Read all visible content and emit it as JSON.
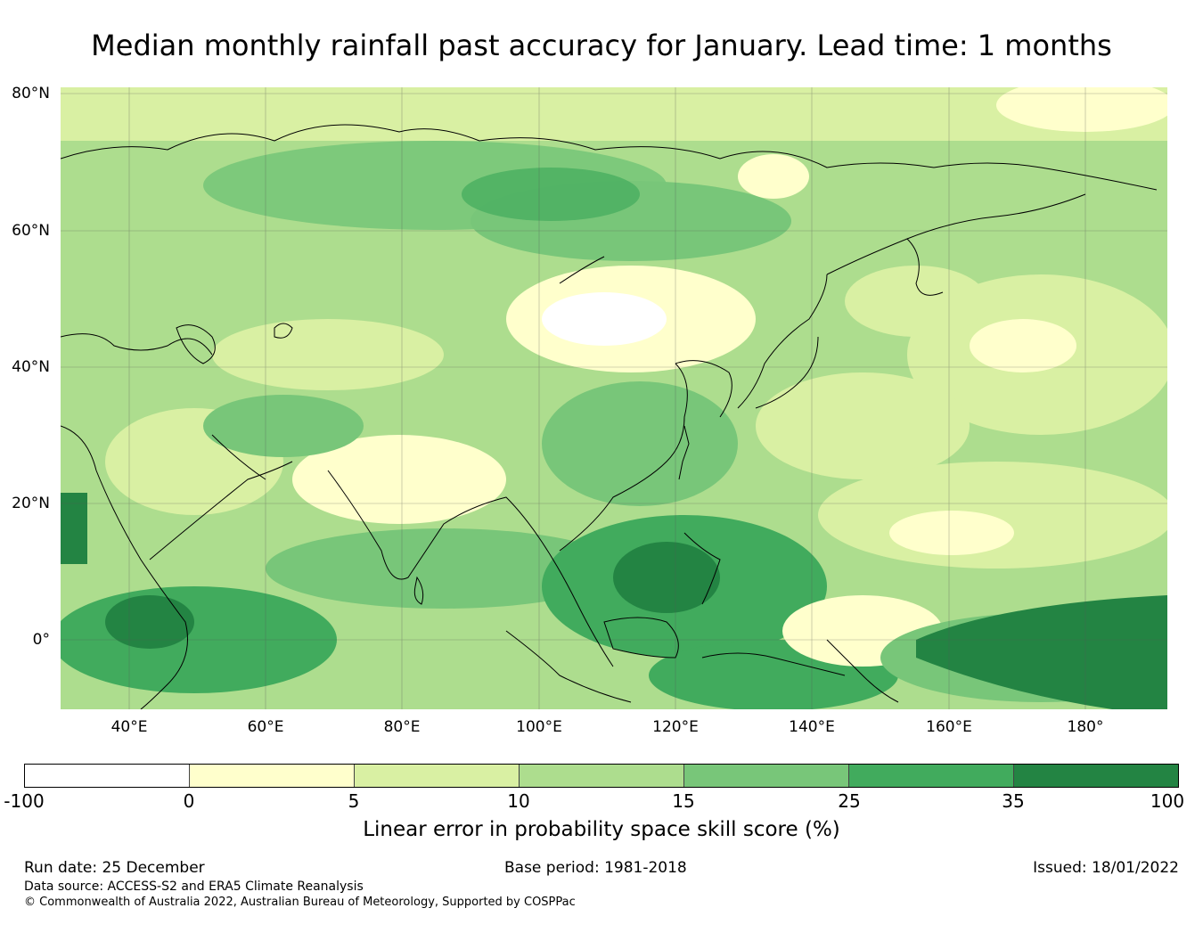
{
  "title": "Median monthly rainfall past accuracy for January. Lead time: 1 months",
  "map": {
    "lat_labels": [
      "80°N",
      "60°N",
      "40°N",
      "20°N",
      "0°"
    ],
    "lon_labels": [
      "40°E",
      "60°E",
      "80°E",
      "100°E",
      "120°E",
      "140°E",
      "160°E",
      "180°"
    ],
    "lat_range": [
      -10,
      81
    ],
    "lon_range": [
      30,
      192
    ]
  },
  "colorbar": {
    "ticks": [
      "-100",
      "0",
      "5",
      "10",
      "15",
      "25",
      "35",
      "100"
    ],
    "colors": [
      "#ffffff",
      "#ffffcc",
      "#d9f0a3",
      "#addd8e",
      "#78c679",
      "#41ab5d",
      "#238443"
    ],
    "label": "Linear error in probability space skill score (%)"
  },
  "footer": {
    "run_date": "Run date: 25 December",
    "base_period": "Base period: 1981-2018",
    "issued": "Issued: 18/01/2022",
    "data_source": "Data source: ACCESS-S2 and ERA5 Climate Reanalysis",
    "copyright": "© Commonwealth of Australia 2022, Australian Bureau of Meteorology, Supported by COSPPac"
  }
}
